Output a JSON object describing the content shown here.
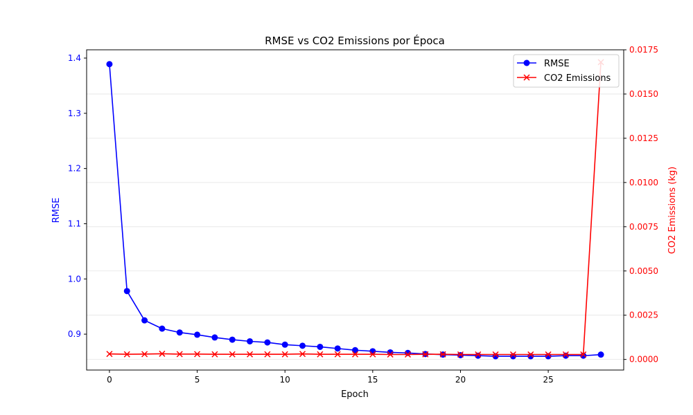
{
  "chart_data": {
    "type": "line",
    "title": "RMSE vs CO2 Emissions por Época",
    "xlabel": "Epoch",
    "ylabel_left": "RMSE",
    "ylabel_right": "CO2 Emissions (kg)",
    "x": [
      0,
      1,
      2,
      3,
      4,
      5,
      6,
      7,
      8,
      9,
      10,
      11,
      12,
      13,
      14,
      15,
      16,
      17,
      18,
      19,
      20,
      21,
      22,
      23,
      24,
      25,
      26,
      27,
      28
    ],
    "xlim": [
      -1.3,
      29.3
    ],
    "xticks": [
      0,
      5,
      10,
      15,
      20,
      25
    ],
    "ylim_left": [
      0.835,
      1.415
    ],
    "yticks_left": [
      0.9,
      1.0,
      1.1,
      1.2,
      1.3,
      1.4
    ],
    "yticks_left_labels": [
      "0.9",
      "1.0",
      "1.1",
      "1.2",
      "1.3",
      "1.4"
    ],
    "ylim_right": [
      -0.0006,
      0.0175
    ],
    "yticks_right": [
      0.0,
      0.0025,
      0.005,
      0.0075,
      0.01,
      0.0125,
      0.015,
      0.0175
    ],
    "yticks_right_labels": [
      "0.0000",
      "0.0025",
      "0.0050",
      "0.0075",
      "0.0100",
      "0.0125",
      "0.0150",
      "0.0175"
    ],
    "grid": true,
    "legend_position": "top-right",
    "series": [
      {
        "name": "RMSE",
        "axis": "left",
        "color": "#0000ff",
        "marker": "circle",
        "values": [
          1.389,
          0.978,
          0.925,
          0.91,
          0.903,
          0.899,
          0.894,
          0.89,
          0.887,
          0.885,
          0.881,
          0.879,
          0.877,
          0.874,
          0.871,
          0.869,
          0.867,
          0.866,
          0.864,
          0.863,
          0.862,
          0.861,
          0.86,
          0.86,
          0.86,
          0.86,
          0.861,
          0.861,
          0.863
        ]
      },
      {
        "name": "CO2 Emissions",
        "axis": "right",
        "color": "#ff0000",
        "marker": "x",
        "values": [
          0.00031,
          0.00029,
          0.0003,
          0.00032,
          0.0003,
          0.0003,
          0.00029,
          0.00029,
          0.00029,
          0.00029,
          0.00029,
          0.00031,
          0.00029,
          0.00029,
          0.00029,
          0.00029,
          0.00028,
          0.00028,
          0.00029,
          0.00029,
          0.00028,
          0.00028,
          0.00028,
          0.00028,
          0.00028,
          0.00028,
          0.00028,
          0.00028,
          0.0168
        ]
      }
    ]
  }
}
